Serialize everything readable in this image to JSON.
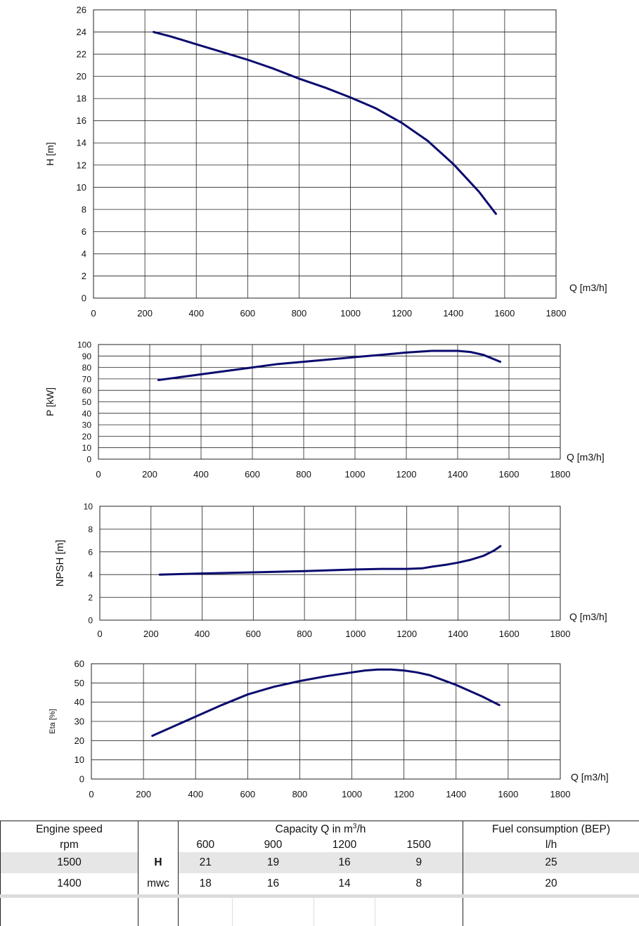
{
  "chart_data": [
    {
      "type": "line",
      "ylabel": "H [m]",
      "xlabel": "Q [m3/h]",
      "xlim": [
        0,
        1800
      ],
      "ylim": [
        0,
        26
      ],
      "xticks": [
        0,
        200,
        400,
        600,
        800,
        1000,
        1200,
        1400,
        1600,
        1800
      ],
      "yticks": [
        0,
        2,
        4,
        6,
        8,
        10,
        12,
        14,
        16,
        18,
        20,
        22,
        24,
        26
      ],
      "grid": true,
      "series": [
        {
          "x": [
            234,
            300,
            400,
            500,
            600,
            700,
            800,
            900,
            1000,
            1100,
            1200,
            1300,
            1400,
            1500,
            1566
          ],
          "y": [
            24.0,
            23.6,
            22.9,
            22.2,
            21.5,
            20.7,
            19.8,
            19.0,
            18.1,
            17.1,
            15.8,
            14.2,
            12.1,
            9.6,
            7.6
          ]
        }
      ]
    },
    {
      "type": "line",
      "ylabel": "P [kW]",
      "xlabel": "Q [m3/h]",
      "xlim": [
        0,
        1800
      ],
      "ylim": [
        0,
        100
      ],
      "xticks": [
        0,
        200,
        400,
        600,
        800,
        1000,
        1200,
        1400,
        1600,
        1800
      ],
      "yticks": [
        0,
        10,
        20,
        30,
        40,
        50,
        60,
        70,
        80,
        90,
        100
      ],
      "grid": true,
      "series": [
        {
          "x": [
            234,
            300,
            400,
            500,
            600,
            700,
            800,
            900,
            1000,
            1100,
            1200,
            1300,
            1400,
            1450,
            1500,
            1566
          ],
          "y": [
            69,
            71,
            74,
            77,
            80,
            83,
            85,
            87,
            89,
            91,
            93,
            94.5,
            94.5,
            93.5,
            91,
            85
          ]
        }
      ]
    },
    {
      "type": "line",
      "ylabel": "NPSH [m]",
      "xlabel": "Q [m3/h]",
      "xlim": [
        0,
        1800
      ],
      "ylim": [
        0,
        10
      ],
      "xticks": [
        0,
        200,
        400,
        600,
        800,
        1000,
        1200,
        1400,
        1600,
        1800
      ],
      "yticks": [
        0,
        2,
        4,
        6,
        8,
        10
      ],
      "grid": true,
      "series": [
        {
          "x": [
            234,
            400,
            600,
            800,
            1000,
            1100,
            1200,
            1260,
            1300,
            1350,
            1400,
            1450,
            1500,
            1540,
            1566
          ],
          "y": [
            4.0,
            4.1,
            4.2,
            4.3,
            4.45,
            4.5,
            4.5,
            4.55,
            4.7,
            4.85,
            5.05,
            5.3,
            5.65,
            6.1,
            6.5
          ]
        }
      ]
    },
    {
      "type": "line",
      "ylabel": "Eta [%]",
      "xlabel": "Q [m3/h]",
      "xlim": [
        0,
        1800
      ],
      "ylim": [
        0,
        60
      ],
      "xticks": [
        0,
        200,
        400,
        600,
        800,
        1000,
        1200,
        1400,
        1600,
        1800
      ],
      "yticks": [
        0,
        10,
        20,
        30,
        40,
        50,
        60
      ],
      "grid": true,
      "series": [
        {
          "x": [
            234,
            300,
            400,
            500,
            600,
            700,
            800,
            900,
            1000,
            1050,
            1100,
            1150,
            1200,
            1250,
            1300,
            1400,
            1500,
            1566
          ],
          "y": [
            22.5,
            26.5,
            32.5,
            38.5,
            44,
            48,
            51,
            53.5,
            55.5,
            56.5,
            57,
            57,
            56.5,
            55.5,
            54,
            49,
            43,
            38.5
          ]
        }
      ]
    }
  ],
  "table": {
    "engine_speed_label": "Engine speed",
    "rpm_label": "rpm",
    "capacity_label": "Capacity Q in m",
    "capacity_sup": "3",
    "capacity_suffix": "/h",
    "fuel_label": "Fuel consumption (BEP)",
    "fuel_unit": "l/h",
    "capacities": [
      "600",
      "900",
      "1200",
      "1500"
    ],
    "unit_h": "H",
    "unit_mwc": "mwc",
    "rows": [
      {
        "rpm": "1500",
        "values": [
          "21",
          "19",
          "16",
          "9"
        ],
        "fuel": "25"
      },
      {
        "rpm": "1400",
        "values": [
          "18",
          "16",
          "14",
          "8"
        ],
        "fuel": "20"
      }
    ]
  }
}
